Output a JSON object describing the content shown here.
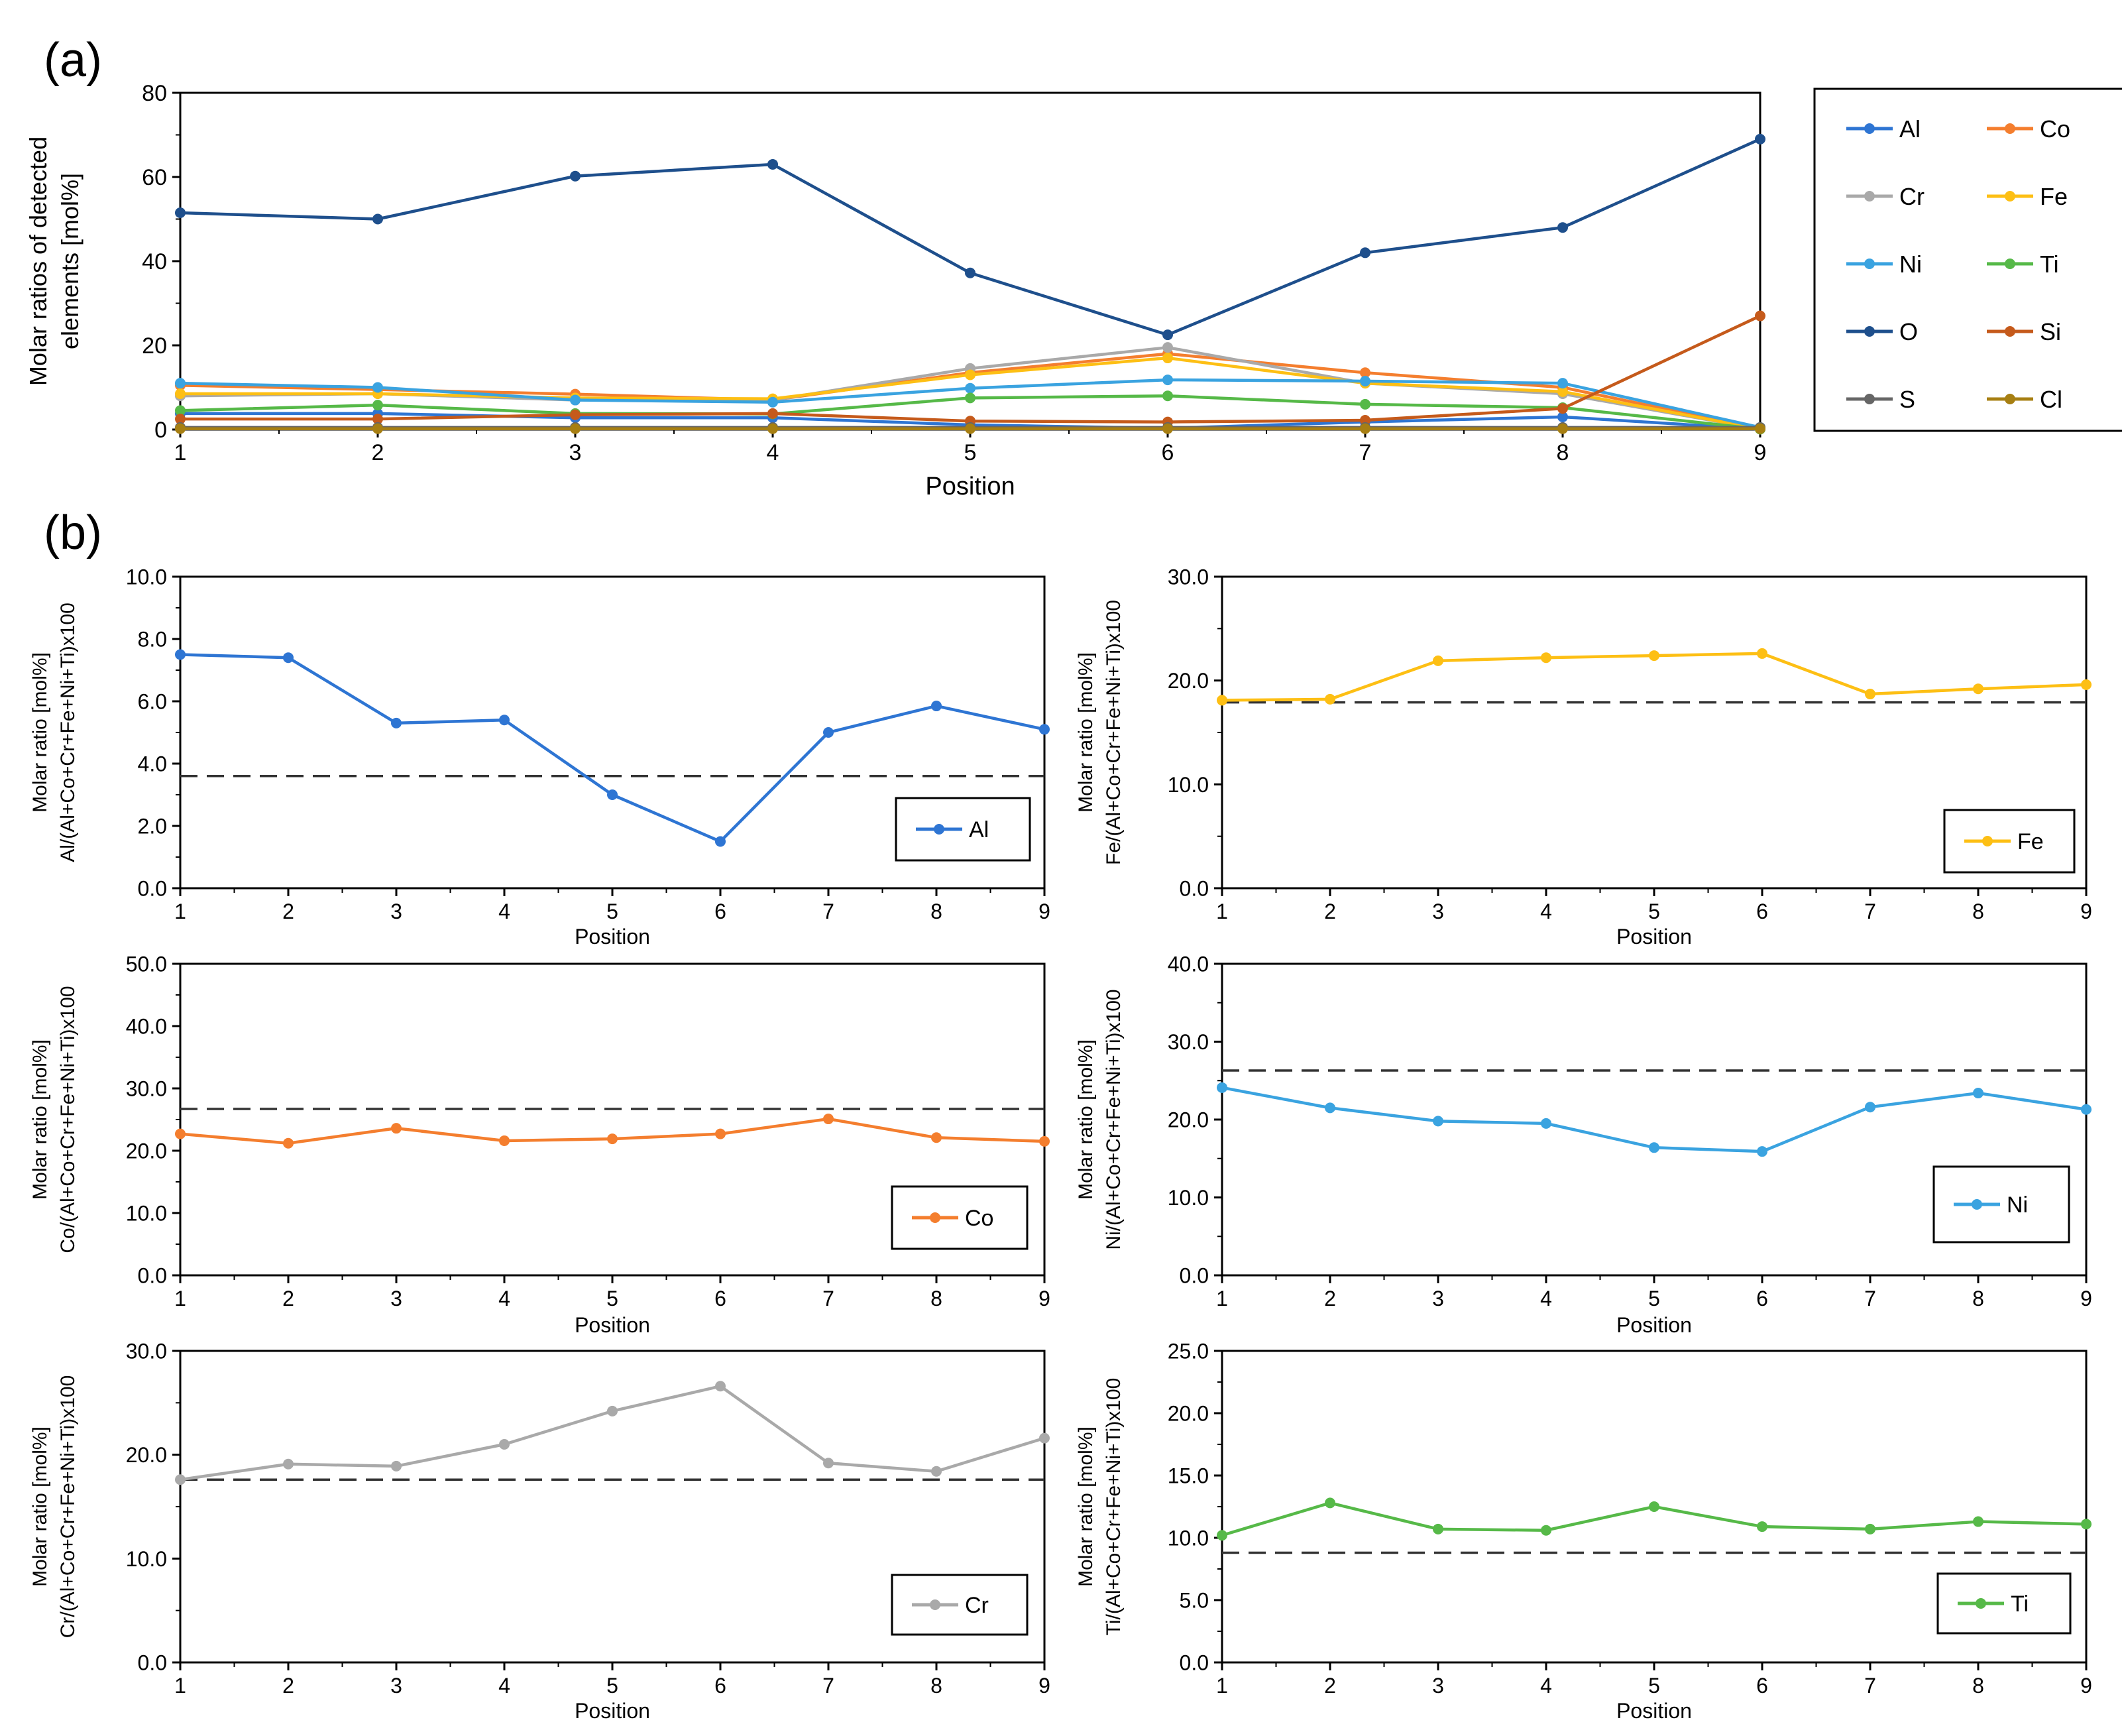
{
  "panel_labels": {
    "a": "(a)",
    "b": "(b)"
  },
  "chart_data": [
    {
      "id": "a",
      "type": "line",
      "title": "",
      "xlabel": "Position",
      "ylabel_lines": [
        "Molar ratios of detected",
        "elements [mol%]"
      ],
      "x": [
        1,
        2,
        3,
        4,
        5,
        6,
        7,
        8,
        9
      ],
      "xlim": [
        1,
        9
      ],
      "ylim": [
        0,
        80
      ],
      "yticks": [
        0,
        20,
        40,
        60,
        80
      ],
      "ytick_labels": [
        "0",
        "20",
        "40",
        "60",
        "80"
      ],
      "legend": "right, outside, 2 columns",
      "series": [
        {
          "name": "Al",
          "color": "#2e75d3",
          "values": [
            3.8,
            3.8,
            2.8,
            2.8,
            1.1,
            0.3,
            1.8,
            3.0,
            0.1
          ]
        },
        {
          "name": "Co",
          "color": "#f47e2e",
          "values": [
            10.5,
            9.5,
            8.4,
            7.0,
            13.5,
            18.0,
            13.5,
            10.0,
            0.2
          ]
        },
        {
          "name": "Cr",
          "color": "#a9a9a9",
          "values": [
            8.0,
            8.5,
            7.0,
            7.0,
            14.5,
            19.5,
            11.0,
            8.5,
            0.1
          ]
        },
        {
          "name": "Fe",
          "color": "#fdbf14",
          "values": [
            8.5,
            8.5,
            7.5,
            7.3,
            13.0,
            17.0,
            11.0,
            9.0,
            0.1
          ]
        },
        {
          "name": "Ni",
          "color": "#3aa3e0",
          "values": [
            11.0,
            10.0,
            7.0,
            6.5,
            9.8,
            11.8,
            11.5,
            11.0,
            0.5
          ]
        },
        {
          "name": "Ti",
          "color": "#56b948",
          "values": [
            4.5,
            5.8,
            3.8,
            3.7,
            7.5,
            8.0,
            6.0,
            5.2,
            0.1
          ]
        },
        {
          "name": "O",
          "color": "#1e4f8c",
          "values": [
            51.5,
            50.0,
            60.2,
            63.0,
            37.2,
            22.5,
            42.0,
            48.0,
            69.0
          ]
        },
        {
          "name": "Si",
          "color": "#c55a1b",
          "values": [
            2.5,
            2.5,
            3.5,
            3.8,
            2.0,
            1.8,
            2.2,
            5.0,
            27.0
          ]
        },
        {
          "name": "S",
          "color": "#666666",
          "values": [
            0.5,
            0.5,
            0.5,
            0.5,
            0.5,
            0.5,
            0.5,
            0.5,
            0.5
          ]
        },
        {
          "name": "Cl",
          "color": "#a77f12",
          "values": [
            0.2,
            0.2,
            0.2,
            0.2,
            0.2,
            0.2,
            0.2,
            0.2,
            0.2
          ]
        }
      ]
    },
    {
      "id": "b-al",
      "type": "line",
      "xlabel": "Position",
      "ylabel_lines": [
        "Molar ratio [mol%]",
        "Al/(Al+Co+Cr+Fe+Ni+Ti)x100"
      ],
      "x": [
        1,
        2,
        3,
        4,
        5,
        6,
        7,
        8,
        9
      ],
      "xlim": [
        1,
        9
      ],
      "ylim": [
        0,
        10
      ],
      "yticks": [
        0,
        2,
        4,
        6,
        8,
        10
      ],
      "ytick_labels": [
        "0.0",
        "2.0",
        "4.0",
        "6.0",
        "8.0",
        "10.0"
      ],
      "reference_line": 3.6,
      "legend": "bottom-right",
      "series": [
        {
          "name": "Al",
          "color": "#2e75d3",
          "values": [
            7.5,
            7.4,
            5.3,
            5.4,
            3.0,
            1.5,
            5.0,
            5.85,
            5.1
          ]
        }
      ]
    },
    {
      "id": "b-fe",
      "type": "line",
      "xlabel": "Position",
      "ylabel_lines": [
        "Molar ratio [mol%]",
        "Fe/(Al+Co+Cr+Fe+Ni+Ti)x100"
      ],
      "x": [
        1,
        2,
        3,
        4,
        5,
        6,
        7,
        8,
        9
      ],
      "xlim": [
        1,
        9
      ],
      "ylim": [
        0,
        30
      ],
      "yticks": [
        0,
        10,
        20,
        30
      ],
      "ytick_labels": [
        "0.0",
        "10.0",
        "20.0",
        "30.0"
      ],
      "reference_line": 17.9,
      "legend": "bottom-right",
      "series": [
        {
          "name": "Fe",
          "color": "#fdbf14",
          "values": [
            18.1,
            18.2,
            21.9,
            22.2,
            22.4,
            22.6,
            18.7,
            19.2,
            19.6
          ]
        }
      ]
    },
    {
      "id": "b-co",
      "type": "line",
      "xlabel": "Position",
      "ylabel_lines": [
        "Molar ratio [mol%]",
        "Co/(Al+Co+Cr+Fe+Ni+Ti)x100"
      ],
      "x": [
        1,
        2,
        3,
        4,
        5,
        6,
        7,
        8,
        9
      ],
      "xlim": [
        1,
        9
      ],
      "ylim": [
        0,
        50
      ],
      "yticks": [
        0,
        10,
        20,
        30,
        40,
        50
      ],
      "ytick_labels": [
        "0.0",
        "10.0",
        "20.0",
        "30.0",
        "40.0",
        "50.0"
      ],
      "reference_line": 26.7,
      "legend": "bottom-right",
      "series": [
        {
          "name": "Co",
          "color": "#f47e2e",
          "values": [
            22.7,
            21.2,
            23.6,
            21.6,
            21.9,
            22.7,
            25.1,
            22.1,
            21.5
          ]
        }
      ]
    },
    {
      "id": "b-ni",
      "type": "line",
      "xlabel": "Position",
      "ylabel_lines": [
        "Molar ratio [mol%]",
        "Ni/(Al+Co+Cr+Fe+Ni+Ti)x100"
      ],
      "x": [
        1,
        2,
        3,
        4,
        5,
        6,
        7,
        8,
        9
      ],
      "xlim": [
        1,
        9
      ],
      "ylim": [
        0,
        40
      ],
      "yticks": [
        0,
        10,
        20,
        30,
        40
      ],
      "ytick_labels": [
        "0.0",
        "10.0",
        "20.0",
        "30.0",
        "40.0"
      ],
      "reference_line": 26.3,
      "legend": "bottom-right",
      "series": [
        {
          "name": "Ni",
          "color": "#3aa3e0",
          "values": [
            24.1,
            21.5,
            19.8,
            19.5,
            16.4,
            15.9,
            21.6,
            23.4,
            21.3
          ]
        }
      ]
    },
    {
      "id": "b-cr",
      "type": "line",
      "xlabel": "Position",
      "ylabel_lines": [
        "Molar ratio [mol%]",
        "Cr/(Al+Co+Cr+Fe+Ni+Ti)x100"
      ],
      "x": [
        1,
        2,
        3,
        4,
        5,
        6,
        7,
        8,
        9
      ],
      "xlim": [
        1,
        9
      ],
      "ylim": [
        0,
        30
      ],
      "yticks": [
        0,
        10,
        20,
        30
      ],
      "ytick_labels": [
        "0.0",
        "10.0",
        "20.0",
        "30.0"
      ],
      "reference_line": 17.6,
      "legend": "bottom-right",
      "series": [
        {
          "name": "Cr",
          "color": "#a9a9a9",
          "values": [
            17.6,
            19.1,
            18.9,
            21.0,
            24.2,
            26.6,
            19.2,
            18.4,
            21.6
          ]
        }
      ]
    },
    {
      "id": "b-ti",
      "type": "line",
      "xlabel": "Position",
      "ylabel_lines": [
        "Molar ratio [mol%]",
        "Ti/(Al+Co+Cr+Fe+Ni+Ti)x100"
      ],
      "x": [
        1,
        2,
        3,
        4,
        5,
        6,
        7,
        8,
        9
      ],
      "xlim": [
        1,
        9
      ],
      "ylim": [
        0,
        25
      ],
      "yticks": [
        0,
        5,
        10,
        15,
        20,
        25
      ],
      "ytick_labels": [
        "0.0",
        "5.0",
        "10.0",
        "15.0",
        "20.0",
        "25.0"
      ],
      "reference_line": 8.8,
      "legend": "bottom-right",
      "series": [
        {
          "name": "Ti",
          "color": "#56b948",
          "values": [
            10.2,
            12.8,
            10.7,
            10.6,
            12.5,
            10.9,
            10.7,
            11.3,
            11.1
          ]
        }
      ]
    }
  ]
}
